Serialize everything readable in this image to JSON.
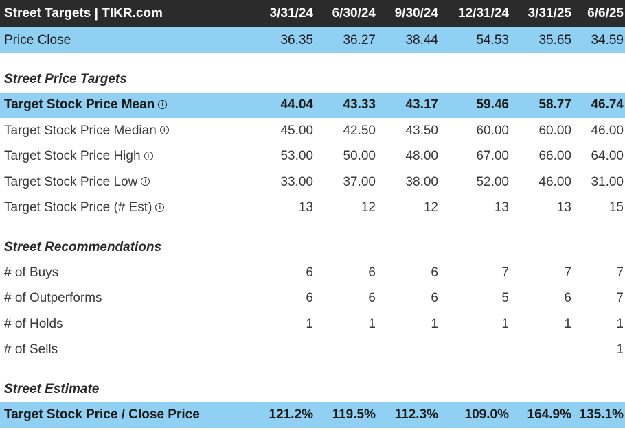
{
  "header": {
    "title": "Street Targets | TIKR.com",
    "periods": [
      "3/31/24",
      "6/30/24",
      "9/30/24",
      "12/31/24",
      "3/31/25",
      "6/6/25"
    ]
  },
  "price_close": {
    "label": "Price Close",
    "values": [
      "36.35",
      "36.27",
      "38.44",
      "54.53",
      "35.65",
      "34.59"
    ]
  },
  "price_targets": {
    "section_title": "Street Price Targets",
    "rows": [
      {
        "label": "Target Stock Price Mean",
        "values": [
          "44.04",
          "43.33",
          "43.17",
          "59.46",
          "58.77",
          "46.74"
        ]
      },
      {
        "label": "Target Stock Price Median",
        "values": [
          "45.00",
          "42.50",
          "43.50",
          "60.00",
          "60.00",
          "46.00"
        ]
      },
      {
        "label": "Target Stock Price High",
        "values": [
          "53.00",
          "50.00",
          "48.00",
          "67.00",
          "66.00",
          "64.00"
        ]
      },
      {
        "label": "Target Stock Price Low",
        "values": [
          "33.00",
          "37.00",
          "38.00",
          "52.00",
          "46.00",
          "31.00"
        ]
      },
      {
        "label": "Target Stock Price (# Est)",
        "values": [
          "13",
          "12",
          "12",
          "13",
          "13",
          "15"
        ]
      }
    ]
  },
  "recommendations": {
    "section_title": "Street Recommendations",
    "rows": [
      {
        "label": "# of Buys",
        "values": [
          "6",
          "6",
          "6",
          "7",
          "7",
          "7"
        ]
      },
      {
        "label": "# of Outperforms",
        "values": [
          "6",
          "6",
          "6",
          "5",
          "6",
          "7"
        ]
      },
      {
        "label": "# of Holds",
        "values": [
          "1",
          "1",
          "1",
          "1",
          "1",
          "1"
        ]
      },
      {
        "label": "# of Sells",
        "values": [
          "",
          "",
          "",
          "",
          "",
          "1"
        ]
      }
    ]
  },
  "estimate": {
    "section_title": "Street Estimate",
    "label": "Target Stock Price / Close Price",
    "values": [
      "121.2%",
      "119.5%",
      "112.3%",
      "109.0%",
      "164.9%",
      "135.1%"
    ]
  },
  "info_icon_name": "info-icon",
  "colors": {
    "header_bg": "#2b2b2b",
    "highlight_bg": "#8fd0f3"
  }
}
